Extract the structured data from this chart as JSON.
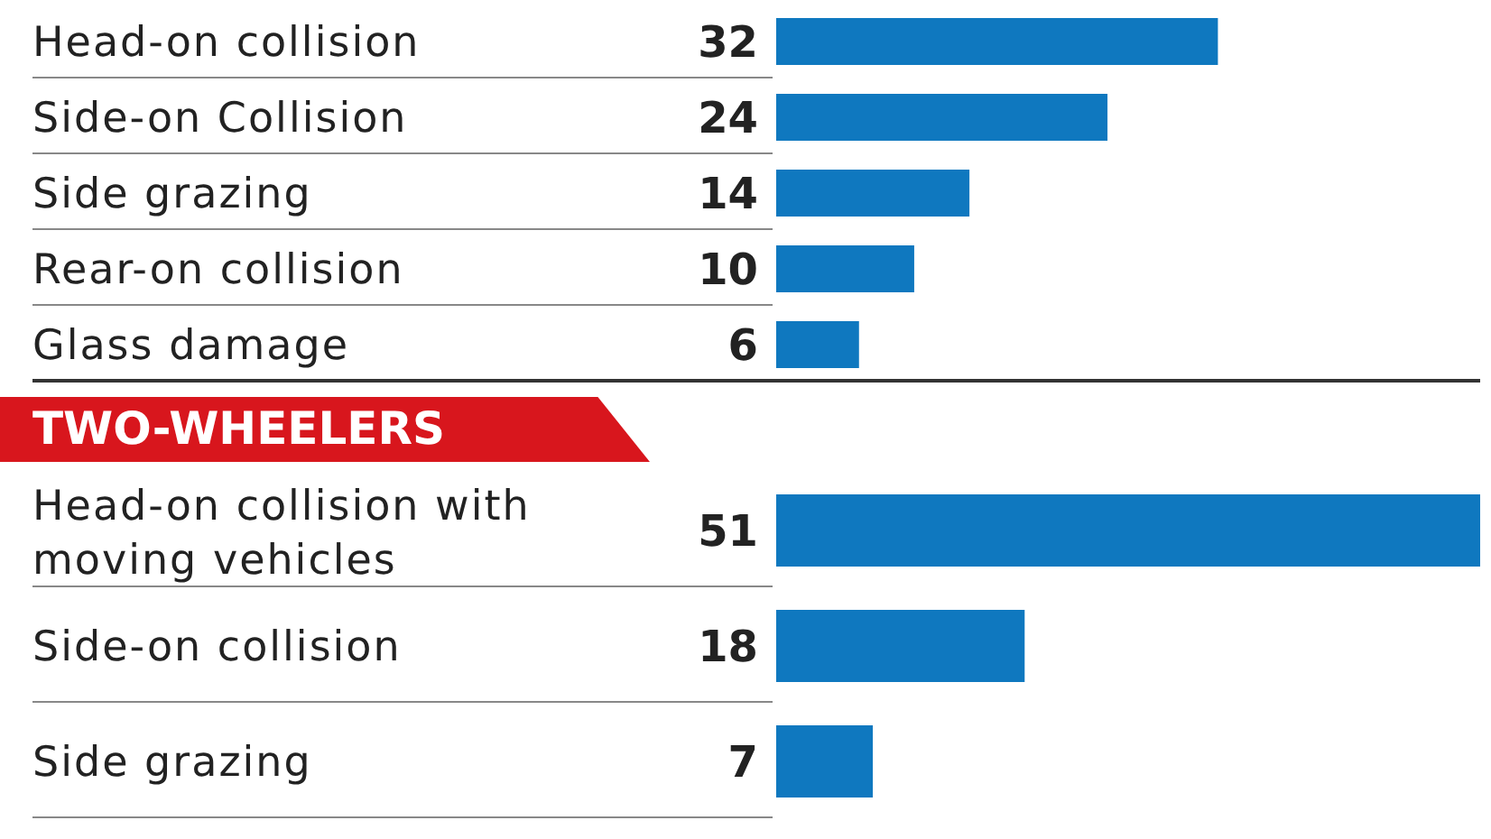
{
  "chart_data": [
    {
      "type": "bar",
      "orientation": "horizontal",
      "categories": [
        "Head-on collision",
        "Side-on Collision",
        "Side grazing",
        "Rear-on collision",
        "Glass damage"
      ],
      "values": [
        32,
        24,
        14,
        10,
        6
      ],
      "color": "#0f78bf",
      "data_labels": true
    },
    {
      "type": "bar",
      "orientation": "horizontal",
      "title": "TWO-WHEELERS",
      "categories": [
        "Head-on collision with moving vehicles",
        "Side-on collision",
        "Side grazing"
      ],
      "values": [
        51,
        18,
        7
      ],
      "color": "#0f78bf",
      "data_labels": true
    }
  ]
}
